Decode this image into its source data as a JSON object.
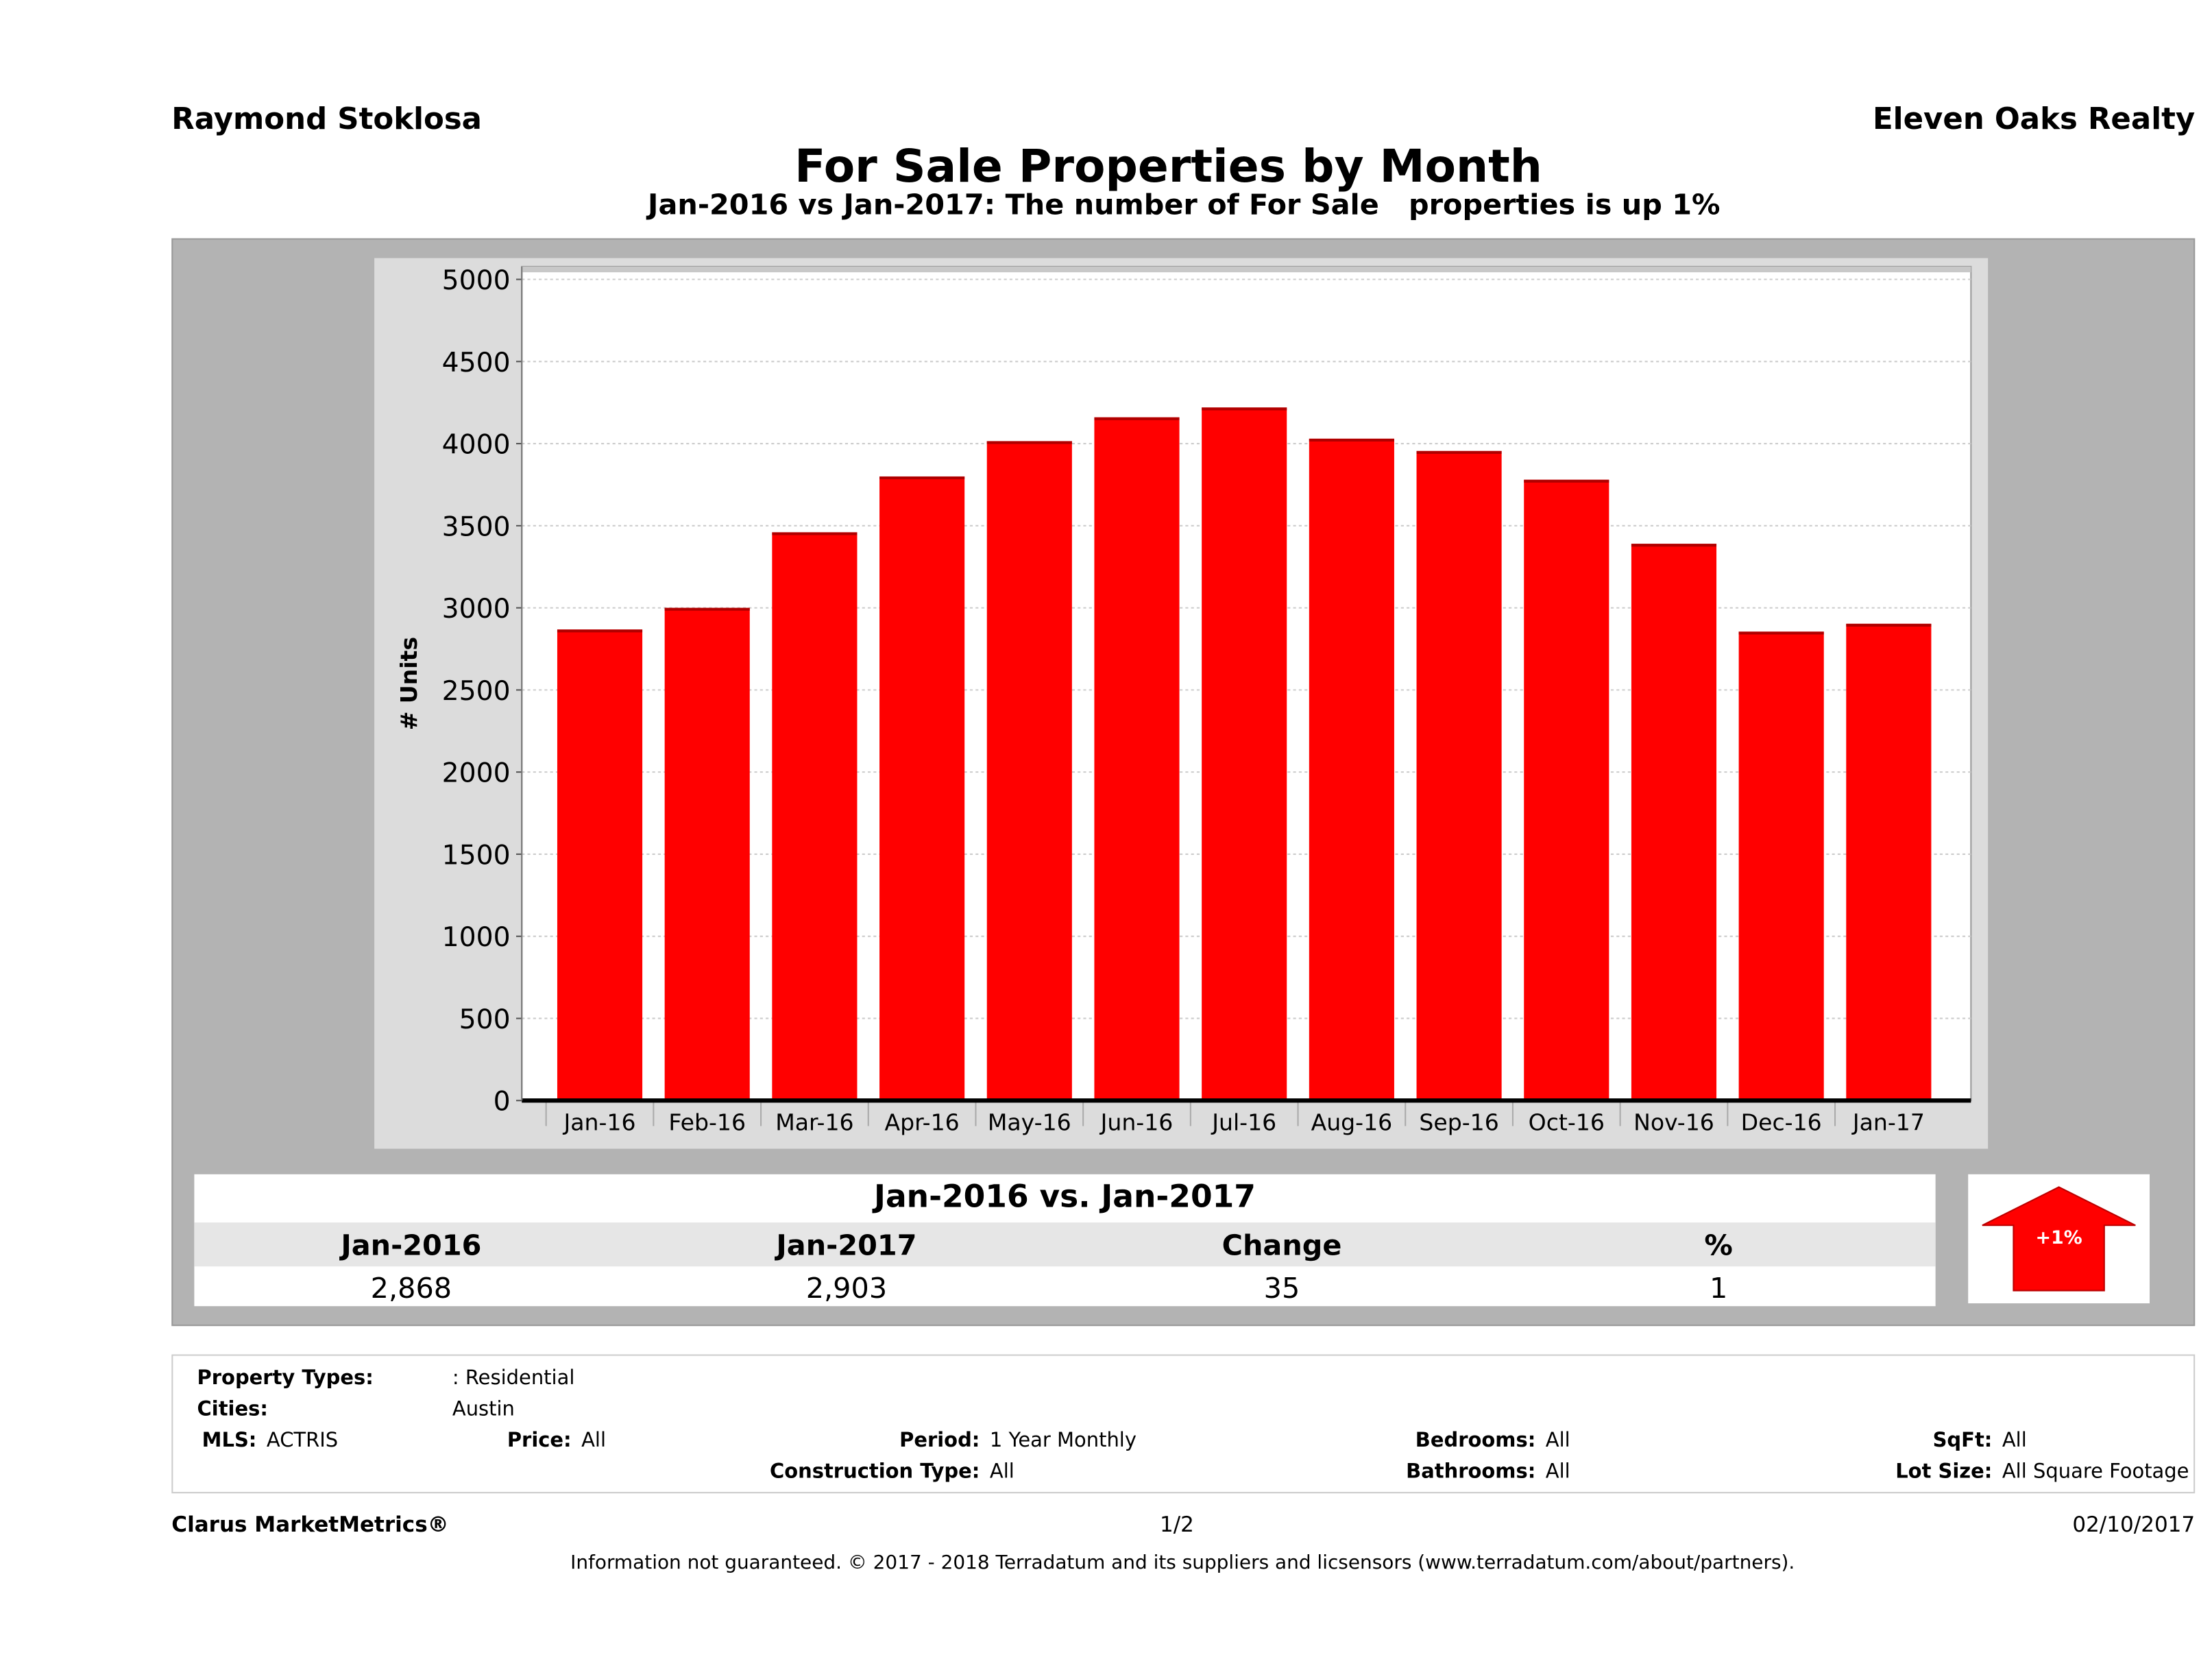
{
  "header": {
    "agent": "Raymond Stoklosa",
    "brokerage": "Eleven Oaks Realty"
  },
  "chart_data": {
    "type": "bar",
    "title": "For Sale Properties by Month",
    "subtitle": "Jan-2016 vs Jan-2017: The number of For Sale   properties is up 1%",
    "xlabel": "",
    "ylabel": "# Units",
    "ylim": [
      0,
      5000
    ],
    "yticks": [
      0,
      500,
      1000,
      1500,
      2000,
      2500,
      3000,
      3500,
      4000,
      4500,
      5000
    ],
    "grid": true,
    "categories": [
      "Jan-16",
      "Feb-16",
      "Mar-16",
      "Apr-16",
      "May-16",
      "Jun-16",
      "Jul-16",
      "Aug-16",
      "Sep-16",
      "Oct-16",
      "Nov-16",
      "Dec-16",
      "Jan-17"
    ],
    "values": [
      2868,
      3000,
      3460,
      3800,
      4015,
      4160,
      4220,
      4030,
      3955,
      3780,
      3390,
      2855,
      2903
    ],
    "color": "#ff0000"
  },
  "summary": {
    "title": "Jan-2016 vs. Jan-2017",
    "headers": [
      "Jan-2016",
      "Jan-2017",
      "Change",
      "%"
    ],
    "values": [
      "2,868",
      "2,903",
      "35",
      "1"
    ],
    "badge": "+1%",
    "badge_direction": "up",
    "badge_color": "#ff0000"
  },
  "filters": {
    "property_types_label": "Property Types:",
    "property_types": ": Residential",
    "cities_label": "Cities:",
    "cities": "Austin",
    "mls_label": "MLS:",
    "mls": "ACTRIS",
    "price_label": "Price:",
    "price": "All",
    "period_label": "Period:",
    "period": "1 Year Monthly",
    "construction_label": "Construction Type:",
    "construction": "All",
    "bedrooms_label": "Bedrooms:",
    "bedrooms": "All",
    "bathrooms_label": "Bathrooms:",
    "bathrooms": "All",
    "sqft_label": "SqFt:",
    "sqft": "All",
    "lot_label": "Lot Size:",
    "lot": "All Square Footage"
  },
  "footer": {
    "brand": "Clarus MarketMetrics®",
    "page": "1/2",
    "date": "02/10/2017",
    "disclaimer": "Information not guaranteed. © 2017 - 2018 Terradatum and its suppliers and licsensors (www.terradatum.com/about/partners)."
  }
}
